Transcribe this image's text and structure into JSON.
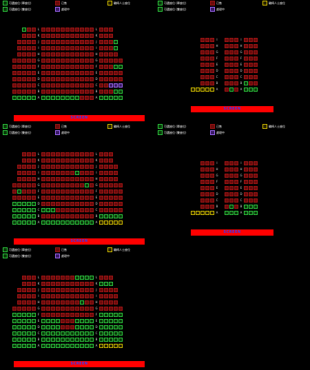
{
  "legend": {
    "available_label": "可選座位 (單座位)",
    "pair_label": "可選座位 (雙座位)",
    "sold_label": "已售",
    "processing_label": "處理中",
    "wheelchair_label": "輪椅人士座位"
  },
  "screen_label": "SCREEN",
  "colors": {
    "available": "#2ecc40",
    "sold": "#a31515",
    "wheelchair": "#d8c300",
    "processing": "#a36cff",
    "screen": "#ff0000"
  },
  "panels": [
    {
      "id": "hall-1",
      "rows": [
        "L",
        "K",
        "J",
        "I",
        "H",
        "G",
        "F",
        "E",
        "D",
        "C",
        "B",
        "A"
      ]
    },
    {
      "id": "hall-2",
      "rows": [
        "I",
        "H",
        "G",
        "F",
        "E",
        "D",
        "C",
        "B",
        "A"
      ]
    },
    {
      "id": "hall-3",
      "rows": [
        "L",
        "K",
        "J",
        "I",
        "H",
        "G",
        "F",
        "E",
        "D",
        "C",
        "B",
        "A"
      ]
    },
    {
      "id": "hall-4",
      "rows": [
        "I",
        "H",
        "G",
        "F",
        "E",
        "D",
        "C",
        "B",
        "A"
      ]
    },
    {
      "id": "hall-5",
      "rows": [
        "L",
        "K",
        "J",
        "I",
        "H",
        "G",
        "F",
        "E",
        "D",
        "C",
        "B",
        "A"
      ]
    }
  ]
}
